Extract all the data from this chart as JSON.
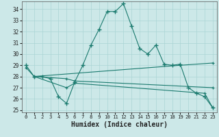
{
  "xlabel": "Humidex (Indice chaleur)",
  "bg_color": "#cce8e8",
  "line_color": "#1a7a6e",
  "grid_color": "#aad4d4",
  "x_ticks": [
    0,
    1,
    2,
    3,
    4,
    5,
    6,
    7,
    8,
    9,
    10,
    11,
    12,
    13,
    14,
    15,
    16,
    17,
    18,
    19,
    20,
    21,
    22,
    23
  ],
  "y_ticks": [
    25,
    26,
    27,
    28,
    29,
    30,
    31,
    32,
    33,
    34
  ],
  "ylim": [
    24.8,
    34.7
  ],
  "xlim": [
    -0.5,
    23.5
  ],
  "series1": {
    "x": [
      0,
      1,
      2,
      3,
      4,
      5,
      6,
      7,
      8,
      9,
      10,
      11,
      12,
      13,
      14,
      15,
      16,
      17,
      18,
      19,
      20,
      21,
      22,
      23
    ],
    "y": [
      29.0,
      28.0,
      28.0,
      27.8,
      26.2,
      25.6,
      27.5,
      29.0,
      30.8,
      32.2,
      33.8,
      33.8,
      34.5,
      32.5,
      30.5,
      30.0,
      30.8,
      29.1,
      29.0,
      29.1,
      27.0,
      26.5,
      26.2,
      25.2
    ]
  },
  "series2": {
    "x": [
      0,
      1,
      19,
      23
    ],
    "y": [
      28.8,
      28.0,
      29.0,
      29.2
    ]
  },
  "series3": {
    "x": [
      1,
      5,
      6,
      23
    ],
    "y": [
      28.0,
      27.8,
      27.6,
      27.0
    ]
  },
  "series4": {
    "x": [
      1,
      5,
      6,
      22,
      23
    ],
    "y": [
      28.0,
      27.0,
      27.4,
      26.5,
      25.2
    ]
  }
}
